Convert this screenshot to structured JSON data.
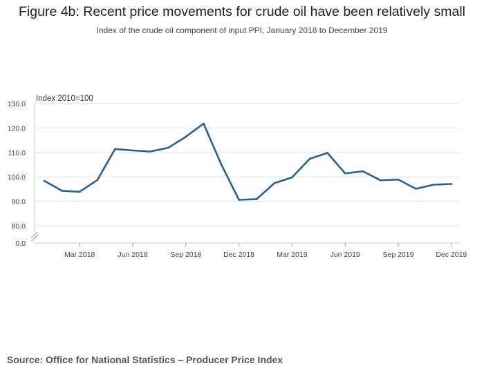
{
  "title": "Figure 4b: Recent price movements for crude oil have been relatively small",
  "subtitle": "Index of the crude oil component of input PPI, January 2018 to December 2019",
  "source": "Source: Office for National Statistics – Producer Price Index",
  "colors": {
    "line": "#2a5f8f",
    "grid": "#e0e0e0",
    "axis_text": "#444444"
  },
  "chart_data": {
    "type": "line",
    "title": "Figure 4b: Recent price movements for crude oil have been relatively small",
    "subtitle": "Index of the crude oil component of input PPI, January 2018 to December 2019",
    "ylabel": "Index 2010=100",
    "ylim": [
      80,
      130
    ],
    "axis_break": true,
    "grid": true,
    "y_ticks": [
      "130.0",
      "120.0",
      "110.0",
      "100.0",
      "90.0",
      "80.0",
      "0.0"
    ],
    "x_ticks": [
      "Mar 2018",
      "Jun 2018",
      "Sep 2018",
      "Dec 2018",
      "Mar 2019",
      "Jun 2019",
      "Sep 2019",
      "Dec 2019"
    ],
    "x_tick_months": [
      2,
      5,
      8,
      11,
      14,
      17,
      20,
      23
    ],
    "x": [
      "Jan 2018",
      "Feb 2018",
      "Mar 2018",
      "Apr 2018",
      "May 2018",
      "Jun 2018",
      "Jul 2018",
      "Aug 2018",
      "Sep 2018",
      "Oct 2018",
      "Nov 2018",
      "Dec 2018",
      "Jan 2019",
      "Feb 2019",
      "Mar 2019",
      "Apr 2019",
      "May 2019",
      "Jun 2019",
      "Jul 2019",
      "Aug 2019",
      "Sep 2019",
      "Oct 2019",
      "Nov 2019",
      "Dec 2019"
    ],
    "series": [
      {
        "values": [
          98.4,
          94.3,
          93.9,
          98.7,
          111.4,
          110.8,
          110.4,
          111.9,
          116.4,
          121.8,
          105.1,
          90.6,
          90.9,
          97.4,
          99.8,
          107.4,
          109.8,
          101.4,
          102.3,
          98.6,
          98.9,
          95.1,
          96.8,
          97.1
        ]
      }
    ]
  }
}
